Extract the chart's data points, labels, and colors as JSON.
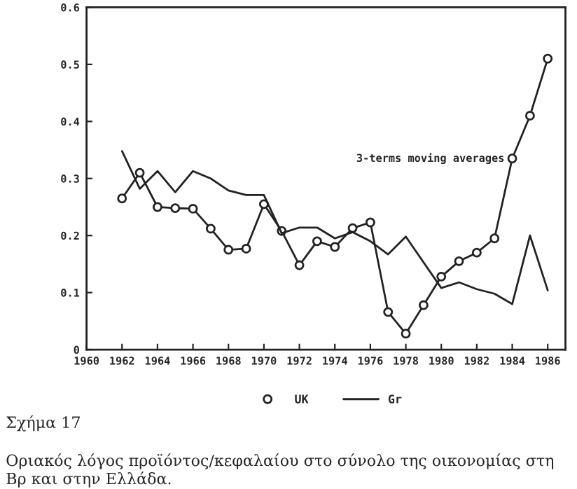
{
  "chart_data": {
    "type": "line",
    "title": "Σχήμα 17",
    "subtitle": "Οριακός λόγος προϊόντος/κεφαλαίου στο σύνολο της οικονομίας στη Βρ και στην Ελλάδα.",
    "x": [
      1962,
      1963,
      1964,
      1965,
      1966,
      1967,
      1968,
      1969,
      1970,
      1971,
      1972,
      1973,
      1974,
      1975,
      1976,
      1977,
      1978,
      1979,
      1980,
      1981,
      1982,
      1983,
      1984,
      1985,
      1986
    ],
    "series": [
      {
        "name": "UK",
        "color": "#222222",
        "marker": "circle",
        "values": [
          0.265,
          0.31,
          0.25,
          0.248,
          0.247,
          0.212,
          0.175,
          0.177,
          0.255,
          0.208,
          0.148,
          0.19,
          0.18,
          0.213,
          0.223,
          0.066,
          0.028,
          0.078,
          0.128,
          0.155,
          0.17,
          0.195,
          0.335,
          0.41,
          0.51
        ]
      },
      {
        "name": "Gr",
        "color": "#222222",
        "marker": "none",
        "values": [
          0.348,
          0.282,
          0.313,
          0.276,
          0.313,
          0.3,
          0.279,
          0.271,
          0.271,
          0.204,
          0.214,
          0.214,
          0.195,
          0.206,
          0.19,
          0.167,
          0.198,
          0.153,
          0.108,
          0.118,
          0.106,
          0.098,
          0.08,
          0.2,
          0.104
        ]
      }
    ],
    "annotations": [
      {
        "text": "3-terms moving averages",
        "x": 1984,
        "y": 0.335
      }
    ],
    "xlim": [
      1960,
      1987
    ],
    "xticks": [
      1960,
      1962,
      1964,
      1966,
      1968,
      1970,
      1972,
      1974,
      1976,
      1978,
      1980,
      1982,
      1984,
      1986
    ],
    "ylim": [
      0,
      0.6
    ],
    "yticks": [
      0,
      0.1,
      0.2,
      0.3,
      0.4,
      0.5,
      0.6
    ],
    "grid": false,
    "legend": "bottom",
    "line_style": "solid"
  }
}
